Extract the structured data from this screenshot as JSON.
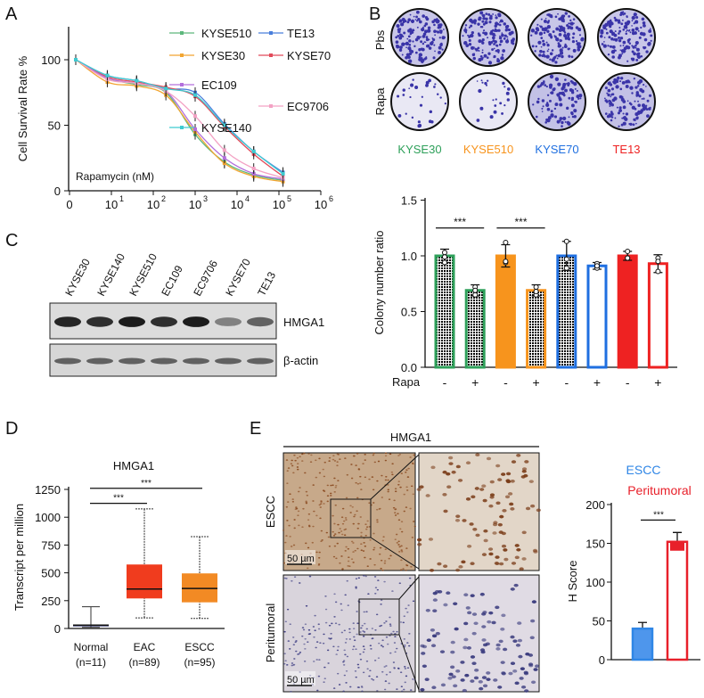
{
  "panel_labels": {
    "a": "A",
    "b": "B",
    "c": "C",
    "d": "D",
    "e": "E"
  },
  "panel_b": {
    "row_labels": [
      "Pbs",
      "Rapa"
    ],
    "cell_lines": [
      {
        "name": "KYSE30",
        "color": "#2ea05a"
      },
      {
        "name": "KYSE510",
        "color": "#f7941d"
      },
      {
        "name": "KYSE70",
        "color": "#1f6fe0"
      },
      {
        "name": "TE13",
        "color": "#ee2222"
      }
    ]
  },
  "panel_c": {
    "lanes": [
      "KYSE30",
      "KYSE140",
      "KYSE510",
      "EC109",
      "EC9706",
      "KYSE70",
      "TE13"
    ],
    "blots": [
      "HMGA1",
      "β-actin"
    ],
    "hmga1_intensity": [
      0.9,
      0.85,
      0.95,
      0.85,
      0.95,
      0.45,
      0.6
    ]
  },
  "panel_e": {
    "header": "HMGA1",
    "row_labels": [
      "ESCC",
      "Peritumoral"
    ],
    "scale_bar": "50 µm"
  },
  "chart_data": [
    {
      "panel": "A",
      "type": "line",
      "ylabel": "Cell Survival Rate %",
      "annotation": "Rapamycin (nM)",
      "x_scale": "log",
      "x_tick_labels": [
        "0",
        "10",
        "10",
        "10",
        "10",
        "10",
        "10"
      ],
      "x_tick_exponents": [
        "",
        "1",
        "2",
        "3",
        "4",
        "5",
        "6"
      ],
      "y_ticks": [
        "0",
        "50",
        "100"
      ],
      "ylim": [
        0,
        125
      ],
      "x": [
        0,
        8,
        40,
        200,
        1000,
        5000,
        25000,
        125000
      ],
      "legend": "top-right",
      "series": [
        {
          "name": "KYSE510",
          "color": "#5db87c",
          "values": [
            100,
            86,
            81,
            75,
            43,
            22,
            12,
            8
          ],
          "err": 4
        },
        {
          "name": "TE13",
          "color": "#4a7fdc",
          "values": [
            100,
            88,
            84,
            78,
            75,
            51,
            30,
            14
          ],
          "err": 4
        },
        {
          "name": "KYSE30",
          "color": "#f2a531",
          "values": [
            100,
            83,
            80,
            73,
            45,
            21,
            11,
            7
          ],
          "err": 4
        },
        {
          "name": "KYSE70",
          "color": "#e24b5a",
          "values": [
            100,
            87,
            83,
            79,
            72,
            49,
            28,
            11
          ],
          "err": 4
        },
        {
          "name": "EC109",
          "color": "#b36fdc",
          "values": [
            100,
            86,
            82,
            76,
            47,
            25,
            13,
            9
          ],
          "err": 4
        },
        {
          "name": "EC9706",
          "color": "#f3a2c4",
          "values": [
            100,
            85,
            82,
            76,
            57,
            31,
            17,
            10
          ],
          "err": 4
        },
        {
          "name": "KYSE140",
          "color": "#3fcad0",
          "values": [
            100,
            88,
            84,
            78,
            73,
            50,
            30,
            13
          ],
          "err": 4
        }
      ]
    },
    {
      "panel": "B",
      "type": "bar",
      "ylabel": "Colony number ratio",
      "y_ticks": [
        "0.0",
        "0.5",
        "1.0",
        "1.5"
      ],
      "ylim": [
        0,
        1.5
      ],
      "row_label": "Rapa",
      "categories": [
        "-",
        "+",
        "-",
        "+",
        "-",
        "+",
        "-",
        "+"
      ],
      "groups": [
        "KYSE30",
        "KYSE30",
        "KYSE510",
        "KYSE510",
        "KYSE70",
        "KYSE70",
        "TE13",
        "TE13"
      ],
      "values": [
        1.0,
        0.69,
        1.0,
        0.69,
        1.0,
        0.91,
        1.0,
        0.93
      ],
      "errors": [
        0.06,
        0.05,
        0.1,
        0.05,
        0.13,
        0.03,
        0.04,
        0.08
      ],
      "points": [
        [
          1.03,
          0.94,
          0.99
        ],
        [
          0.72,
          0.65,
          0.69
        ],
        [
          1.12,
          0.94,
          0.95
        ],
        [
          0.72,
          0.65,
          0.68
        ],
        [
          1.13,
          0.97,
          0.89
        ],
        [
          0.93,
          0.89,
          0.91
        ],
        [
          1.04,
          0.98,
          0.98
        ],
        [
          0.98,
          0.86,
          0.95
        ]
      ],
      "colors": [
        "#2ea05a",
        "#2ea05a",
        "#f7941d",
        "#f7941d",
        "#1f6fe0",
        "#1f6fe0",
        "#ee2222",
        "#ee2222"
      ],
      "significance": [
        {
          "from": 0,
          "to": 1,
          "label": "***"
        },
        {
          "from": 2,
          "to": 3,
          "label": "***"
        }
      ]
    },
    {
      "panel": "D",
      "type": "box",
      "title": "HMGA1",
      "ylabel": "Transcript per million",
      "y_ticks": [
        "0",
        "250",
        "500",
        "750",
        "1000",
        "1250"
      ],
      "ylim": [
        0,
        1250
      ],
      "categories": [
        "Normal",
        "EAC",
        "ESCC"
      ],
      "n_labels": [
        "(n=11)",
        "(n=89)",
        "(n=95)"
      ],
      "boxes": [
        {
          "min": 10,
          "q1": 20,
          "median": 30,
          "q3": 35,
          "max": 195,
          "color": "#2b2f6e"
        },
        {
          "min": 95,
          "q1": 270,
          "median": 355,
          "q3": 575,
          "max": 1075,
          "color": "#f03c1e"
        },
        {
          "min": 90,
          "q1": 235,
          "median": 360,
          "q3": 495,
          "max": 825,
          "color": "#f28a24"
        }
      ],
      "significance": [
        {
          "from": 0,
          "to": 1,
          "y": 1125,
          "label": "***"
        },
        {
          "from": 0,
          "to": 2,
          "y": 1260,
          "label": "***"
        }
      ]
    },
    {
      "panel": "E",
      "type": "bar",
      "ylabel": "H Score",
      "y_ticks": [
        "0",
        "50",
        "100",
        "150",
        "200"
      ],
      "ylim": [
        0,
        200
      ],
      "legend": [
        {
          "name": "ESCC",
          "color": "#2f86e6"
        },
        {
          "name": "Peritumoral",
          "color": "#e8202a"
        }
      ],
      "categories": [
        "ESCC",
        "Peritumoral"
      ],
      "values": [
        40,
        152
      ],
      "errors": [
        8,
        12
      ],
      "significance": [
        {
          "from": 0,
          "to": 1,
          "label": "***"
        }
      ]
    }
  ]
}
